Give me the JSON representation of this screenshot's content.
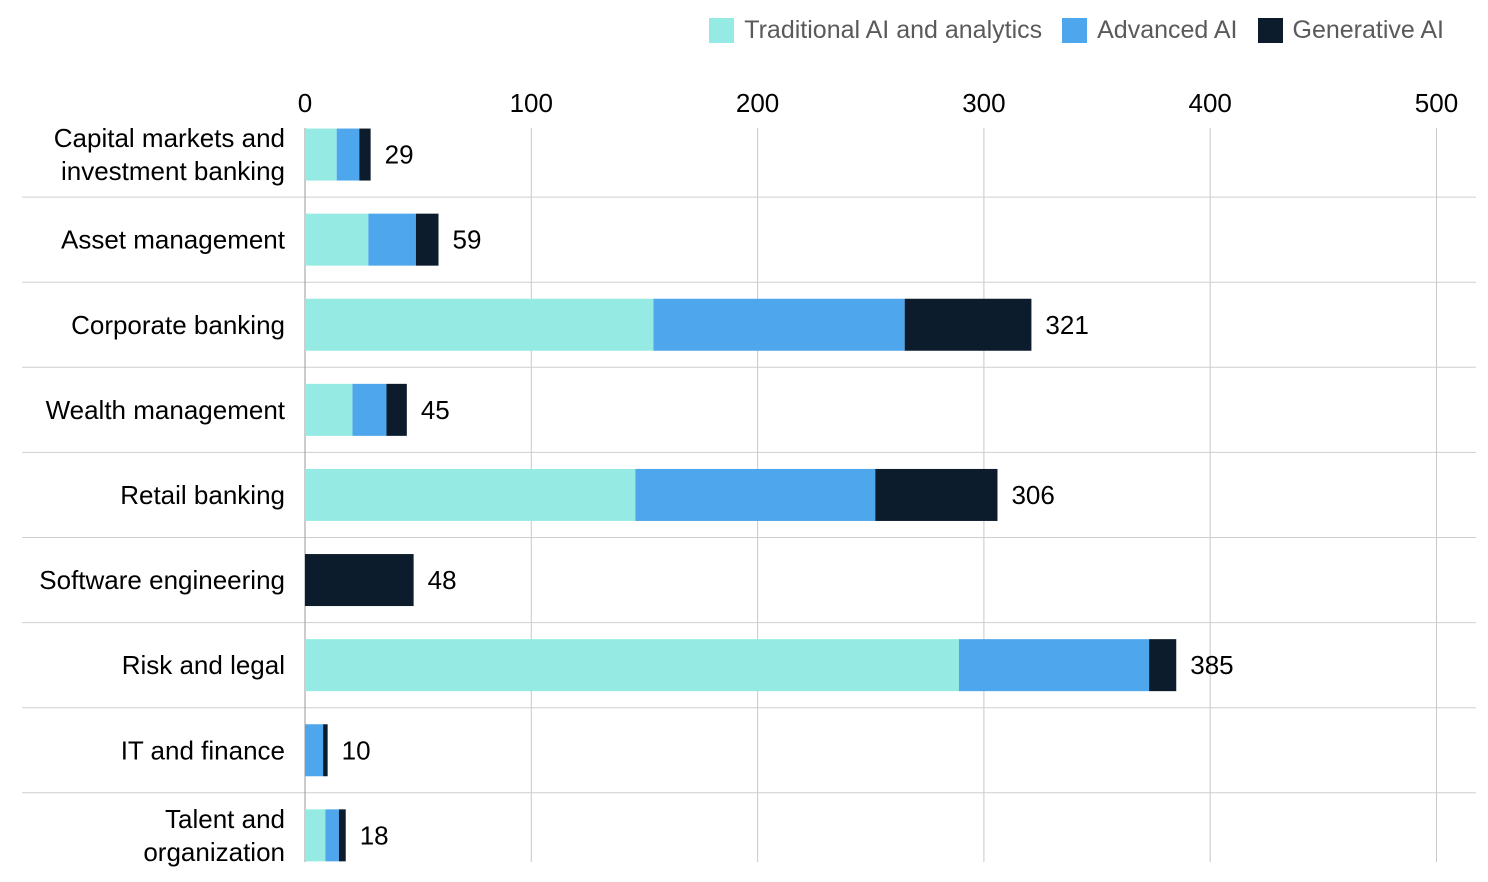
{
  "chart_data": {
    "type": "bar",
    "orientation": "horizontal",
    "stacked": true,
    "categories": [
      "Capital markets and investment banking",
      "Asset management",
      "Corporate banking",
      "Wealth management",
      "Retail banking",
      "Software engineering",
      "Risk and legal",
      "IT and finance",
      "Talent and organization"
    ],
    "category_lines": [
      [
        "Capital markets and",
        "investment banking"
      ],
      [
        "Asset management"
      ],
      [
        "Corporate banking"
      ],
      [
        "Wealth management"
      ],
      [
        "Retail banking"
      ],
      [
        "Software engineering"
      ],
      [
        "Risk and legal"
      ],
      [
        "IT and finance"
      ],
      [
        "Talent and",
        "organization"
      ]
    ],
    "series": [
      {
        "name": "Traditional AI and analytics",
        "color": "#95ebe4",
        "values": [
          14,
          28,
          154,
          21,
          146,
          0,
          289,
          0,
          9
        ]
      },
      {
        "name": "Advanced AI",
        "color": "#4ea6ec",
        "values": [
          10,
          21,
          111,
          15,
          106,
          0,
          84,
          8,
          6
        ]
      },
      {
        "name": "Generative  AI",
        "color": "#0c1c2c",
        "values": [
          5,
          10,
          56,
          9,
          54,
          48,
          12,
          2,
          3
        ]
      }
    ],
    "totals": [
      "29",
      "59",
      "321",
      "45",
      "306",
      "48",
      "385",
      "10",
      "18"
    ],
    "xlim": [
      0,
      500
    ],
    "xticks": [
      "0",
      "100",
      "200",
      "300",
      "400",
      "500"
    ],
    "xaxis_position": "top",
    "grid": true,
    "legend_position": "top-right"
  }
}
